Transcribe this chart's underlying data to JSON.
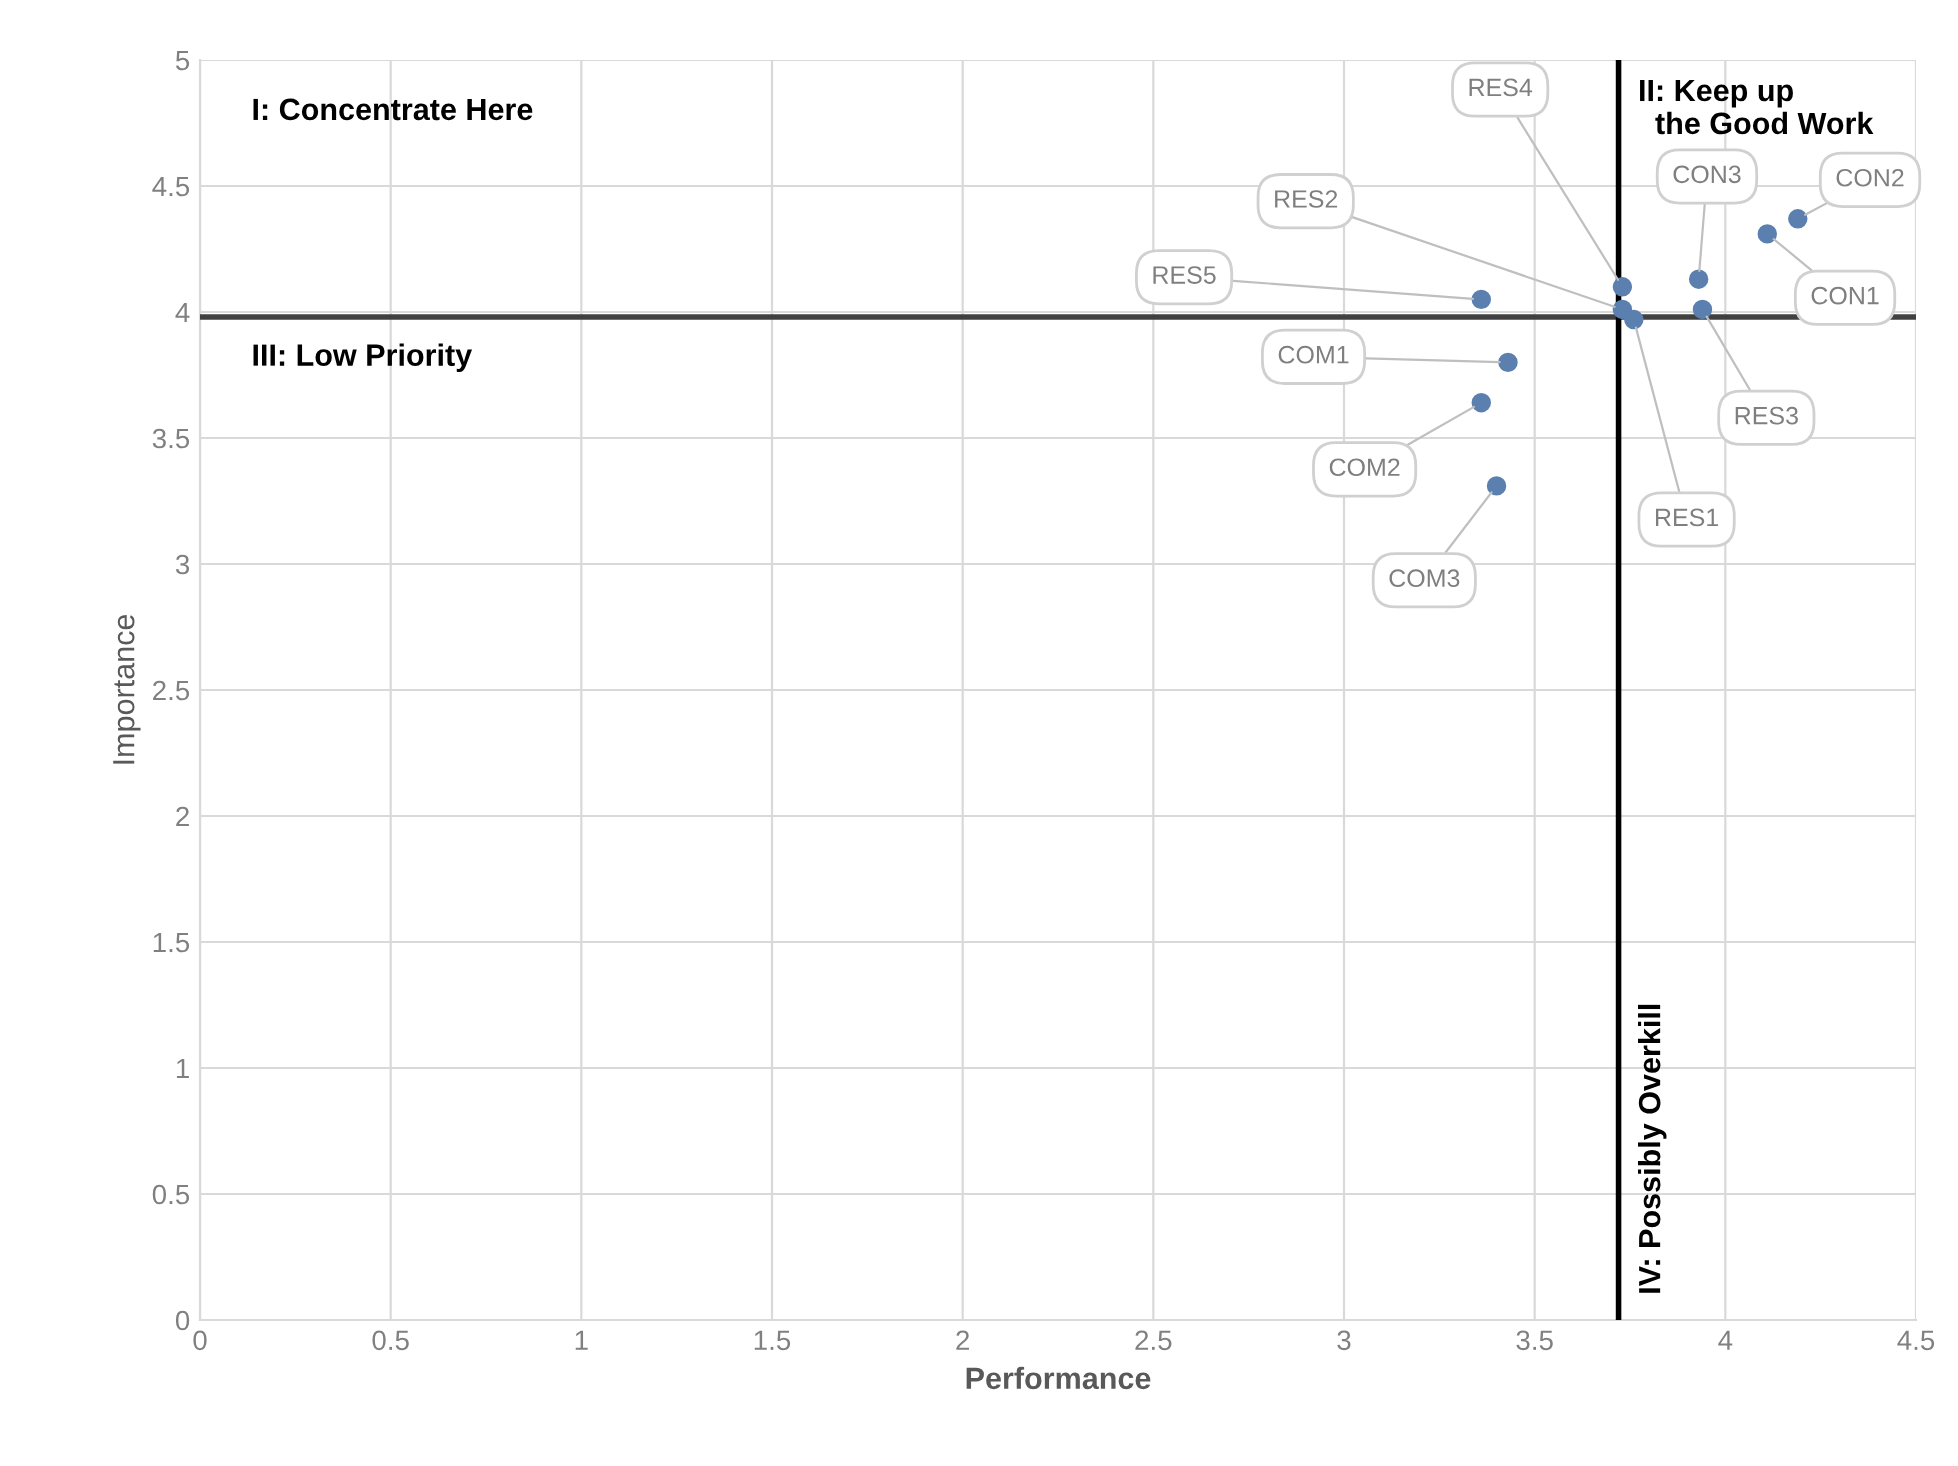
{
  "chart_data": {
    "type": "scatter",
    "xlabel": "Performance",
    "ylabel": "Importance",
    "x": [
      3.36,
      3.43,
      3.36,
      3.4,
      3.73,
      3.73,
      3.76,
      3.93,
      3.94,
      4.11,
      4.19
    ],
    "series": [
      {
        "color": "#5b80b0",
        "values": [
          4.05,
          3.8,
          3.64,
          3.31,
          4.1,
          4.01,
          3.97,
          4.13,
          4.01,
          4.31,
          4.37
        ]
      }
    ],
    "marker": "circle",
    "xlim": [
      0,
      4.5
    ],
    "xticks": [
      0,
      0.5,
      1,
      1.5,
      2,
      2.5,
      3,
      3.5,
      4,
      4.5
    ],
    "ylim": [
      0,
      5
    ],
    "yticks": [
      0,
      0.5,
      1,
      1.5,
      2,
      2.5,
      3,
      3.5,
      4,
      4.5,
      5
    ],
    "grid": true,
    "ref_lines": [
      {
        "axis": "y",
        "value": 3.98,
        "color": "#404040"
      },
      {
        "axis": "x",
        "value": 3.72,
        "color": "#000000"
      }
    ],
    "annotations": [
      {
        "text": "RES5",
        "x": 3.36,
        "y": 4.05
      },
      {
        "text": "COM1",
        "x": 3.43,
        "y": 3.8
      },
      {
        "text": "COM2",
        "x": 3.36,
        "y": 3.64
      },
      {
        "text": "COM3",
        "x": 3.4,
        "y": 3.31
      },
      {
        "text": "RES4",
        "x": 3.73,
        "y": 4.1
      },
      {
        "text": "RES2",
        "x": 3.73,
        "y": 4.01
      },
      {
        "text": "RES1",
        "x": 3.76,
        "y": 3.97
      },
      {
        "text": "CON3",
        "x": 3.93,
        "y": 4.13
      },
      {
        "text": "RES3",
        "x": 3.94,
        "y": 4.01
      },
      {
        "text": "CON1",
        "x": 4.11,
        "y": 4.31
      },
      {
        "text": "CON2",
        "x": 4.19,
        "y": 4.37
      },
      "I: Concentrate Here",
      "II: Keep up\n  the Good Work",
      "III: Low Priority",
      "IV: Possibly Overkill"
    ]
  }
}
